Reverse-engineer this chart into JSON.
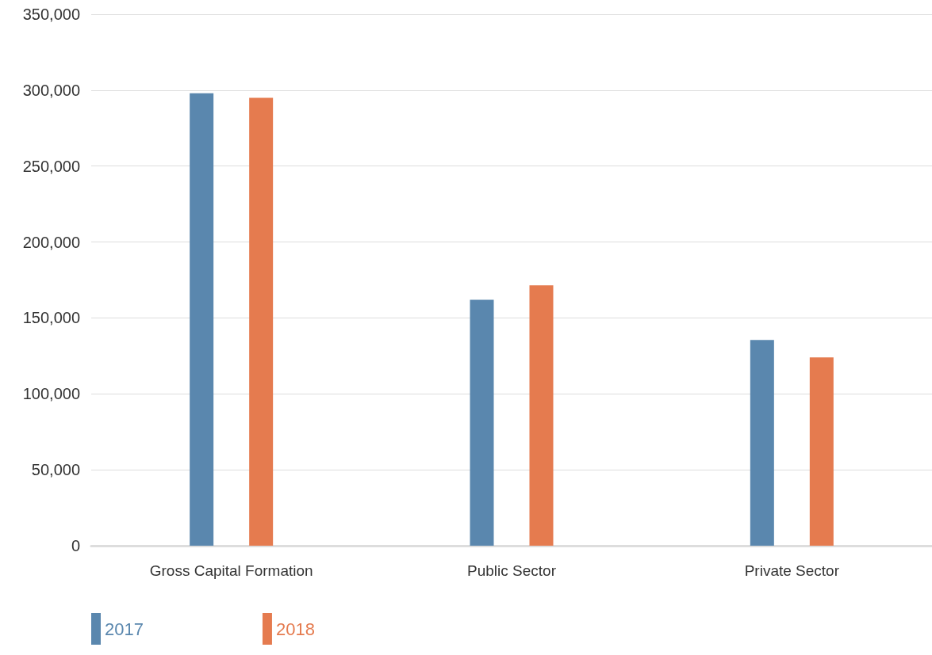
{
  "chart_data": {
    "type": "bar",
    "categories": [
      "Gross Capital Formation",
      "Public Sector",
      "Private Sector"
    ],
    "series": [
      {
        "name": "2017",
        "color": "#5a87ae",
        "values": [
          298000,
          162000,
          135500
        ]
      },
      {
        "name": "2018",
        "color": "#e57b4f",
        "values": [
          295000,
          171500,
          124000
        ]
      }
    ],
    "ylim": [
      0,
      350000
    ],
    "yticks": [
      0,
      {
        "value": 50000,
        "label": "50,000"
      },
      {
        "value": 100000,
        "label": "100,000"
      },
      {
        "value": 150000,
        "label": "150,000"
      },
      {
        "value": 200000,
        "label": "200,000"
      },
      {
        "value": 250000,
        "label": "250,000"
      },
      {
        "value": 300000,
        "label": "300,000"
      },
      {
        "value": 350000,
        "label": "350,000"
      }
    ],
    "grid": "y",
    "legend": "bottom left"
  }
}
